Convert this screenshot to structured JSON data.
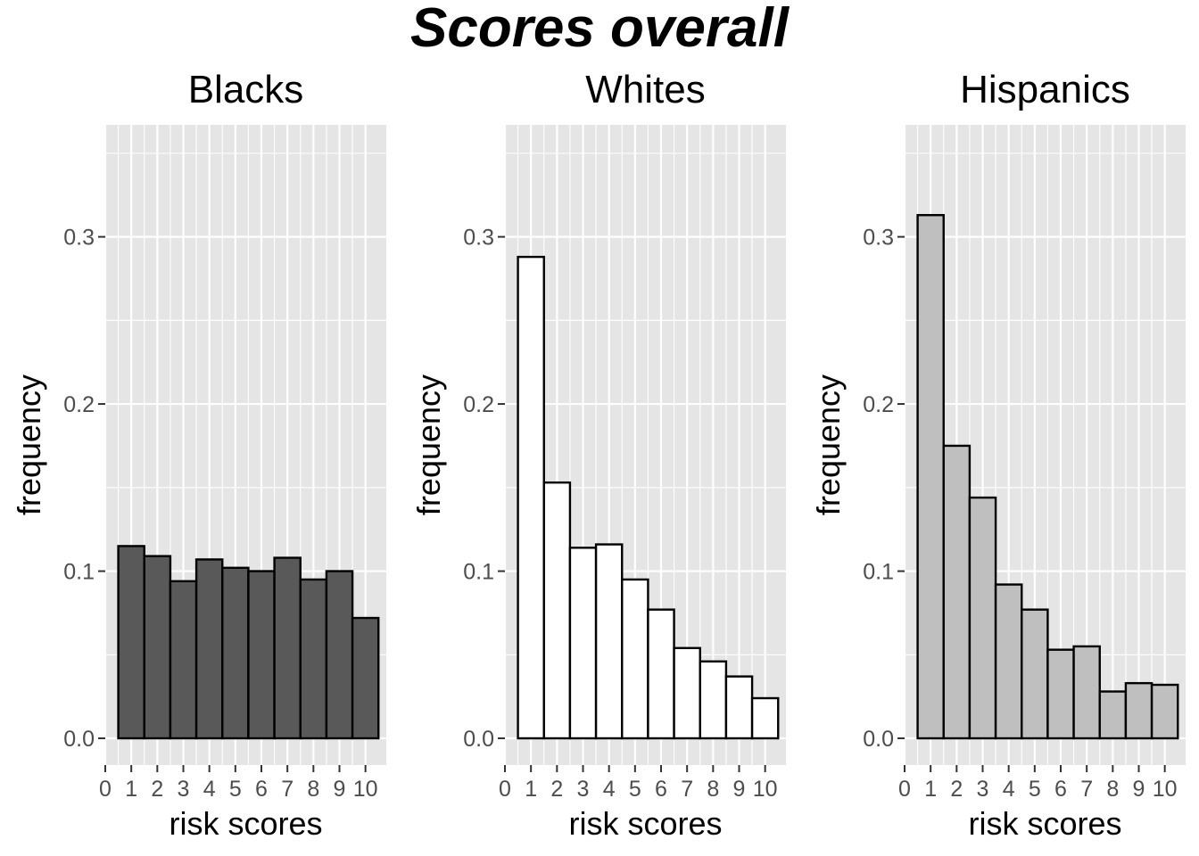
{
  "title": "Scores overall",
  "colors": {
    "panel_background": "#e5e5e5",
    "gridline": "#ffffff",
    "bar_outline": "#000000",
    "tick": "#333333",
    "tick_label": "#4d4d4d"
  },
  "chart_data": [
    {
      "type": "bar",
      "title": "Blacks",
      "xlabel": "risk scores",
      "ylabel": "frequency",
      "fill": "#595959",
      "x": [
        1,
        2,
        3,
        4,
        5,
        6,
        7,
        8,
        9,
        10
      ],
      "values": [
        0.115,
        0.109,
        0.094,
        0.107,
        0.102,
        0.1,
        0.108,
        0.095,
        0.1,
        0.072
      ],
      "x_ticks": [
        "0",
        "1",
        "2",
        "3",
        "4",
        "5",
        "6",
        "7",
        "8",
        "9",
        "10"
      ],
      "y_ticks": [
        "0.0",
        "0.1",
        "0.2",
        "0.3"
      ],
      "xlim": [
        0,
        10.8
      ],
      "ylim": [
        -0.016,
        0.367
      ],
      "grid": true
    },
    {
      "type": "bar",
      "title": "Whites",
      "xlabel": "risk scores",
      "ylabel": "frequency",
      "fill": "#ffffff",
      "x": [
        1,
        2,
        3,
        4,
        5,
        6,
        7,
        8,
        9,
        10
      ],
      "values": [
        0.288,
        0.153,
        0.114,
        0.116,
        0.095,
        0.077,
        0.054,
        0.046,
        0.037,
        0.024
      ],
      "x_ticks": [
        "0",
        "1",
        "2",
        "3",
        "4",
        "5",
        "6",
        "7",
        "8",
        "9",
        "10"
      ],
      "y_ticks": [
        "0.0",
        "0.1",
        "0.2",
        "0.3"
      ],
      "xlim": [
        0,
        10.8
      ],
      "ylim": [
        -0.016,
        0.367
      ],
      "grid": true
    },
    {
      "type": "bar",
      "title": "Hispanics",
      "xlabel": "risk scores",
      "ylabel": "frequency",
      "fill": "#bfbfbf",
      "x": [
        1,
        2,
        3,
        4,
        5,
        6,
        7,
        8,
        9,
        10
      ],
      "values": [
        0.313,
        0.175,
        0.144,
        0.092,
        0.077,
        0.053,
        0.055,
        0.028,
        0.033,
        0.032
      ],
      "x_ticks": [
        "0",
        "1",
        "2",
        "3",
        "4",
        "5",
        "6",
        "7",
        "8",
        "9",
        "10"
      ],
      "y_ticks": [
        "0.0",
        "0.1",
        "0.2",
        "0.3"
      ],
      "xlim": [
        0,
        10.8
      ],
      "ylim": [
        -0.016,
        0.367
      ],
      "grid": true
    }
  ]
}
